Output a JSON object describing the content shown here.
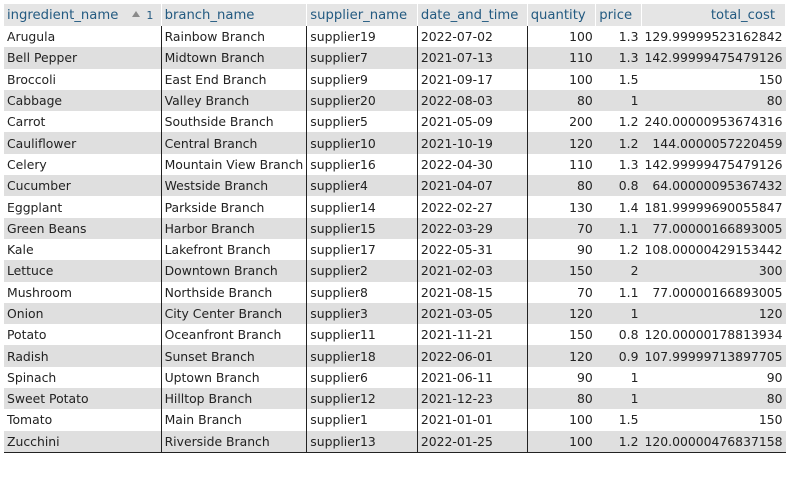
{
  "columns": [
    {
      "key": "ingredient_name",
      "label": "ingredient_name",
      "sorted": true,
      "sort_index": "1"
    },
    {
      "key": "branch_name",
      "label": "branch_name"
    },
    {
      "key": "supplier_name",
      "label": "supplier_name"
    },
    {
      "key": "date_and_time",
      "label": "date_and_time"
    },
    {
      "key": "quantity",
      "label": "quantity"
    },
    {
      "key": "price",
      "label": "price"
    },
    {
      "key": "total_cost",
      "label": "total_cost"
    }
  ],
  "rows": [
    [
      "Arugula",
      "Rainbow Branch",
      "supplier19",
      "2022-07-02",
      "100",
      "1.3",
      "129.99999523162842"
    ],
    [
      "Bell Pepper",
      "Midtown Branch",
      "supplier7",
      "2021-07-13",
      "110",
      "1.3",
      "142.99999475479126"
    ],
    [
      "Broccoli",
      "East End Branch",
      "supplier9",
      "2021-09-17",
      "100",
      "1.5",
      "150"
    ],
    [
      "Cabbage",
      "Valley Branch",
      "supplier20",
      "2022-08-03",
      "80",
      "1",
      "80"
    ],
    [
      "Carrot",
      "Southside Branch",
      "supplier5",
      "2021-05-09",
      "200",
      "1.2",
      "240.00000953674316"
    ],
    [
      "Cauliflower",
      "Central Branch",
      "supplier10",
      "2021-10-19",
      "120",
      "1.2",
      "144.0000057220459"
    ],
    [
      "Celery",
      "Mountain View Branch",
      "supplier16",
      "2022-04-30",
      "110",
      "1.3",
      "142.99999475479126"
    ],
    [
      "Cucumber",
      "Westside Branch",
      "supplier4",
      "2021-04-07",
      "80",
      "0.8",
      "64.00000095367432"
    ],
    [
      "Eggplant",
      "Parkside Branch",
      "supplier14",
      "2022-02-27",
      "130",
      "1.4",
      "181.99999690055847"
    ],
    [
      "Green Beans",
      "Harbor Branch",
      "supplier15",
      "2022-03-29",
      "70",
      "1.1",
      "77.00000166893005"
    ],
    [
      "Kale",
      "Lakefront Branch",
      "supplier17",
      "2022-05-31",
      "90",
      "1.2",
      "108.00000429153442"
    ],
    [
      "Lettuce",
      "Downtown Branch",
      "supplier2",
      "2021-02-03",
      "150",
      "2",
      "300"
    ],
    [
      "Mushroom",
      "Northside Branch",
      "supplier8",
      "2021-08-15",
      "70",
      "1.1",
      "77.00000166893005"
    ],
    [
      "Onion",
      "City Center Branch",
      "supplier3",
      "2021-03-05",
      "120",
      "1",
      "120"
    ],
    [
      "Potato",
      "Oceanfront Branch",
      "supplier11",
      "2021-11-21",
      "150",
      "0.8",
      "120.00000178813934"
    ],
    [
      "Radish",
      "Sunset Branch",
      "supplier18",
      "2022-06-01",
      "120",
      "0.9",
      "107.99999713897705"
    ],
    [
      "Spinach",
      "Uptown Branch",
      "supplier6",
      "2021-06-11",
      "90",
      "1",
      "90"
    ],
    [
      "Sweet Potato",
      "Hilltop Branch",
      "supplier12",
      "2021-12-23",
      "80",
      "1",
      "80"
    ],
    [
      "Tomato",
      "Main Branch",
      "supplier1",
      "2021-01-01",
      "100",
      "1.5",
      "150"
    ],
    [
      "Zucchini",
      "Riverside Branch",
      "supplier13",
      "2022-01-25",
      "100",
      "1.2",
      "120.00000476837158"
    ]
  ]
}
